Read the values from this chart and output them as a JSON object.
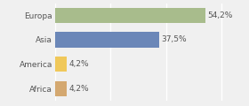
{
  "categories": [
    "Africa",
    "America",
    "Asia",
    "Europa"
  ],
  "values": [
    4.2,
    4.2,
    37.5,
    54.2
  ],
  "labels": [
    "4,2%",
    "4,2%",
    "37,5%",
    "54,2%"
  ],
  "colors": [
    "#d4a870",
    "#f0c85a",
    "#6b87b8",
    "#a8bc8c"
  ],
  "xlim": [
    0,
    68
  ],
  "bar_height": 0.62,
  "background_color": "#f0f0f0",
  "label_fontsize": 6.5,
  "tick_fontsize": 6.5,
  "grid_color": "#ffffff",
  "text_color": "#555555"
}
